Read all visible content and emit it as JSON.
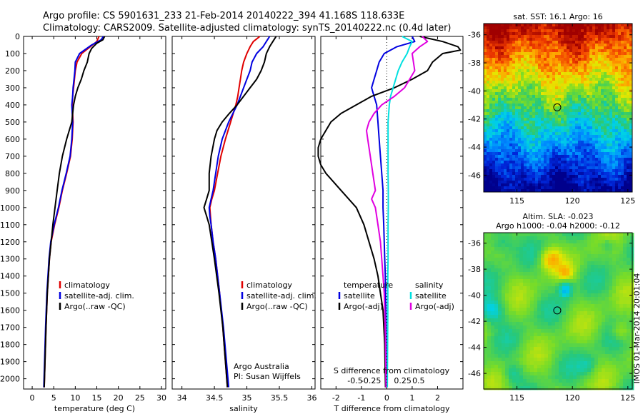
{
  "header": {
    "line1": "Argo profile: CS 5901631_233 21-Feb-2014 20140222_394 41.168S 118.633E",
    "line2": "Climatology: CARS2009. Satellite-adjusted climatology: synTS_20140222.nc (0.4d later)"
  },
  "colors": {
    "climatology": "#e00000",
    "satellite": "#0000e0",
    "argo": "#000000",
    "salinity_satellite": "#00e0e0",
    "salinity_argo": "#e000e0"
  },
  "depth_axis": {
    "ticks": [
      0,
      100,
      200,
      300,
      400,
      500,
      600,
      700,
      800,
      900,
      1000,
      1100,
      1200,
      1300,
      1400,
      1500,
      1600,
      1700,
      1800,
      1900,
      2000
    ],
    "range": [
      0,
      2060
    ]
  },
  "chart_data": [
    {
      "id": "temperature",
      "type": "line",
      "xlabel": "temperature (deg C)",
      "xlim": [
        -2,
        31
      ],
      "xticks": [
        0,
        5,
        10,
        15,
        20,
        25,
        30
      ],
      "xtick_labels": [
        "0",
        "5",
        "10",
        "15",
        "20",
        "25",
        "30"
      ],
      "legend": [
        "climatology",
        "satellite-adj. clim.",
        "Argo(..raw -QC)"
      ],
      "series": [
        {
          "key": "climatology",
          "depth": [
            0,
            30,
            60,
            100,
            150,
            200,
            250,
            300,
            350,
            400,
            450,
            500,
            600,
            700,
            800,
            900,
            1000,
            1100,
            1200,
            1300,
            1500,
            1700,
            2050
          ],
          "values": [
            15.5,
            15.0,
            13.5,
            11.5,
            10.4,
            10.0,
            9.8,
            9.6,
            9.4,
            9.3,
            9.4,
            9.5,
            9.3,
            8.9,
            8.0,
            7.0,
            6.2,
            5.2,
            4.4,
            4.0,
            3.5,
            3.2,
            2.8
          ]
        },
        {
          "key": "satellite",
          "depth": [
            0,
            20,
            50,
            100,
            150,
            200,
            250,
            300,
            350,
            400,
            450,
            500,
            600,
            700,
            800,
            900,
            1000,
            1100,
            1200,
            1300,
            1500,
            1700,
            2050
          ],
          "values": [
            16.5,
            16.0,
            13.8,
            11.0,
            10.0,
            9.9,
            9.7,
            9.5,
            9.4,
            9.2,
            9.3,
            9.4,
            9.2,
            8.8,
            7.9,
            6.9,
            6.1,
            5.1,
            4.3,
            3.9,
            3.4,
            3.1,
            2.7
          ]
        },
        {
          "key": "argo",
          "depth": [
            0,
            20,
            40,
            70,
            100,
            150,
            200,
            250,
            300,
            350,
            400,
            450,
            500,
            550,
            600,
            650,
            700,
            800,
            900,
            1000,
            1100,
            1200,
            1300,
            1500,
            1700,
            2050
          ],
          "values": [
            16.8,
            16.4,
            15.0,
            13.8,
            13.2,
            12.8,
            12.0,
            11.4,
            10.6,
            10.0,
            9.6,
            9.4,
            9.2,
            8.6,
            8.0,
            7.5,
            7.0,
            6.3,
            5.8,
            5.3,
            4.8,
            4.4,
            4.0,
            3.5,
            3.2,
            2.8
          ]
        }
      ]
    },
    {
      "id": "salinity",
      "type": "line",
      "xlabel": "salinity",
      "xlim": [
        33.85,
        36.05
      ],
      "xticks": [
        34,
        34.5,
        35,
        35.5,
        36
      ],
      "xtick_labels": [
        "34",
        "34.5",
        "35",
        "35.5",
        "36"
      ],
      "legend": [
        "climatology",
        "satellite-adj. clim.",
        "Argo(..raw -QC)"
      ],
      "annotation": [
        "Argo Australia",
        "PI: Susan Wijffels"
      ],
      "series": [
        {
          "key": "climatology",
          "depth": [
            0,
            30,
            60,
            100,
            150,
            200,
            250,
            300,
            350,
            400,
            500,
            600,
            700,
            800,
            900,
            950,
            1000,
            1050,
            1100,
            1200,
            1300,
            1500,
            1700,
            2050
          ],
          "values": [
            35.2,
            35.1,
            35.05,
            35.0,
            34.95,
            34.92,
            34.9,
            34.88,
            34.86,
            34.83,
            34.75,
            34.67,
            34.6,
            34.55,
            34.5,
            34.46,
            34.43,
            34.44,
            34.45,
            34.48,
            34.52,
            34.58,
            34.63,
            34.7
          ]
        },
        {
          "key": "satellite",
          "depth": [
            0,
            30,
            60,
            100,
            150,
            200,
            250,
            300,
            350,
            400,
            500,
            600,
            700,
            800,
            900,
            950,
            1000,
            1050,
            1100,
            1200,
            1300,
            1500,
            1700,
            2050
          ],
          "values": [
            35.35,
            35.3,
            35.25,
            35.15,
            35.08,
            35.05,
            35.0,
            34.95,
            34.9,
            34.85,
            34.72,
            34.62,
            34.56,
            34.52,
            34.48,
            34.45,
            34.42,
            34.43,
            34.45,
            34.48,
            34.52,
            34.58,
            34.64,
            34.72
          ]
        },
        {
          "key": "argo",
          "depth": [
            0,
            30,
            60,
            100,
            150,
            200,
            250,
            300,
            350,
            400,
            450,
            500,
            550,
            600,
            700,
            800,
            900,
            950,
            1000,
            1050,
            1100,
            1200,
            1300,
            1500,
            1700,
            2050
          ],
          "values": [
            35.45,
            35.4,
            35.35,
            35.3,
            35.27,
            35.22,
            35.15,
            35.05,
            34.95,
            34.85,
            34.73,
            34.62,
            34.54,
            34.5,
            34.45,
            34.42,
            34.42,
            34.38,
            34.34,
            34.38,
            34.42,
            34.46,
            34.5,
            34.57,
            34.63,
            34.7
          ]
        }
      ]
    },
    {
      "id": "difference",
      "type": "line",
      "xlabel": "T difference from climatology",
      "xlabel_top": "S difference from climatology",
      "xlim": [
        -2.6,
        3.0
      ],
      "xticks": [
        -2,
        -1,
        0,
        1,
        2
      ],
      "xtick_labels": [
        "-2",
        "-1",
        "0",
        "1",
        "2"
      ],
      "sticks": [
        -1.25,
        -0.625,
        0.625,
        1.25
      ],
      "stick_labels": [
        "-0.5",
        "-0.25",
        "0.25",
        "0.5"
      ],
      "legend_temperature": [
        "temperature",
        "satellite",
        "Argo(-adj)"
      ],
      "legend_salinity": [
        "salinity",
        "satellite",
        "Argo(-adj)"
      ],
      "series": [
        {
          "key": "satellite",
          "depth": [
            0,
            30,
            60,
            100,
            150,
            200,
            250,
            300,
            350,
            400,
            500,
            600,
            700,
            800,
            900,
            1000,
            1100,
            1200,
            1300,
            1400,
            1500,
            1600,
            1800,
            2050
          ],
          "values": [
            1.0,
            1.1,
            0.4,
            -0.1,
            -0.3,
            -0.4,
            -0.5,
            -0.6,
            -0.5,
            -0.4,
            -0.35,
            -0.3,
            -0.25,
            -0.2,
            -0.15,
            -0.15,
            -0.12,
            -0.1,
            -0.08,
            -0.06,
            -0.05,
            -0.04,
            -0.03,
            -0.02
          ]
        },
        {
          "key": "argo",
          "depth": [
            0,
            30,
            60,
            80,
            100,
            150,
            200,
            250,
            300,
            350,
            400,
            450,
            500,
            550,
            600,
            650,
            700,
            750,
            800,
            850,
            900,
            950,
            1000,
            1100,
            1200,
            1300,
            1400,
            1500,
            1600,
            1800,
            2050
          ],
          "values": [
            1.3,
            2.2,
            2.8,
            2.9,
            2.2,
            1.8,
            1.6,
            1.0,
            0.3,
            -0.6,
            -1.2,
            -1.8,
            -2.2,
            -2.4,
            -2.6,
            -2.7,
            -2.7,
            -2.6,
            -2.4,
            -2.1,
            -1.8,
            -1.5,
            -1.2,
            -0.9,
            -0.7,
            -0.5,
            -0.35,
            -0.25,
            -0.15,
            -0.08,
            -0.05
          ]
        },
        {
          "key": "salinity_satellite",
          "depth": [
            0,
            30,
            60,
            100,
            150,
            200,
            250,
            300,
            350,
            400,
            500,
            600,
            700,
            800,
            900,
            1000,
            1100,
            1200,
            1300,
            1400,
            1500,
            1600,
            1800,
            2050
          ],
          "values": [
            0.6,
            1.0,
            0.9,
            0.8,
            0.6,
            0.45,
            0.35,
            0.25,
            0.15,
            0.1,
            0.05,
            0.05,
            0.05,
            0.05,
            0.06,
            0.06,
            0.05,
            0.05,
            0.05,
            0.04,
            0.04,
            0.04,
            0.03,
            0.02
          ]
        },
        {
          "key": "salinity_argo",
          "depth": [
            0,
            30,
            60,
            100,
            150,
            200,
            250,
            300,
            350,
            400,
            450,
            500,
            550,
            600,
            650,
            700,
            800,
            900,
            950,
            1000,
            1100,
            1200,
            1300,
            1400,
            1500,
            1600,
            1800,
            2050
          ],
          "values": [
            1.4,
            1.6,
            1.3,
            1.0,
            1.05,
            1.1,
            0.9,
            0.7,
            0.3,
            -0.2,
            -0.5,
            -0.7,
            -0.8,
            -0.75,
            -0.7,
            -0.65,
            -0.55,
            -0.45,
            -0.6,
            -0.45,
            -0.35,
            -0.25,
            -0.2,
            -0.15,
            -0.1,
            -0.08,
            -0.05,
            -0.03
          ]
        }
      ]
    },
    {
      "id": "sst_map",
      "type": "heatmap",
      "title": "sat. SST: 16.1 Argo: 16",
      "xlim": [
        112,
        125.4
      ],
      "ylim": [
        -47.2,
        -35.2
      ],
      "xticks": [
        115,
        120,
        125
      ],
      "yticks": [
        -36,
        -38,
        -40,
        -42,
        -44,
        -46
      ],
      "ytick_labels": [
        "-36",
        "-38",
        "-40",
        "-42",
        "-44",
        "-46"
      ],
      "argo_position": {
        "lon": 118.633,
        "lat": -41.168
      }
    },
    {
      "id": "sla_map",
      "type": "heatmap",
      "title_line1": "Altim. SLA: -0.023",
      "title_line2": "Argo h1000: -0.04 h2000: -0.12",
      "xlim": [
        112,
        125.4
      ],
      "ylim": [
        -47.2,
        -35.2
      ],
      "xticks": [
        115,
        120,
        125
      ],
      "yticks": [
        -36,
        -38,
        -40,
        -42,
        -44,
        -46
      ],
      "ytick_labels": [
        "-36",
        "-38",
        "-40",
        "-42",
        "-44",
        "-46"
      ],
      "argo_position": {
        "lon": 118.633,
        "lat": -41.168
      },
      "side_label": "IMOS 01-Mar-2014 20:01:04"
    }
  ]
}
